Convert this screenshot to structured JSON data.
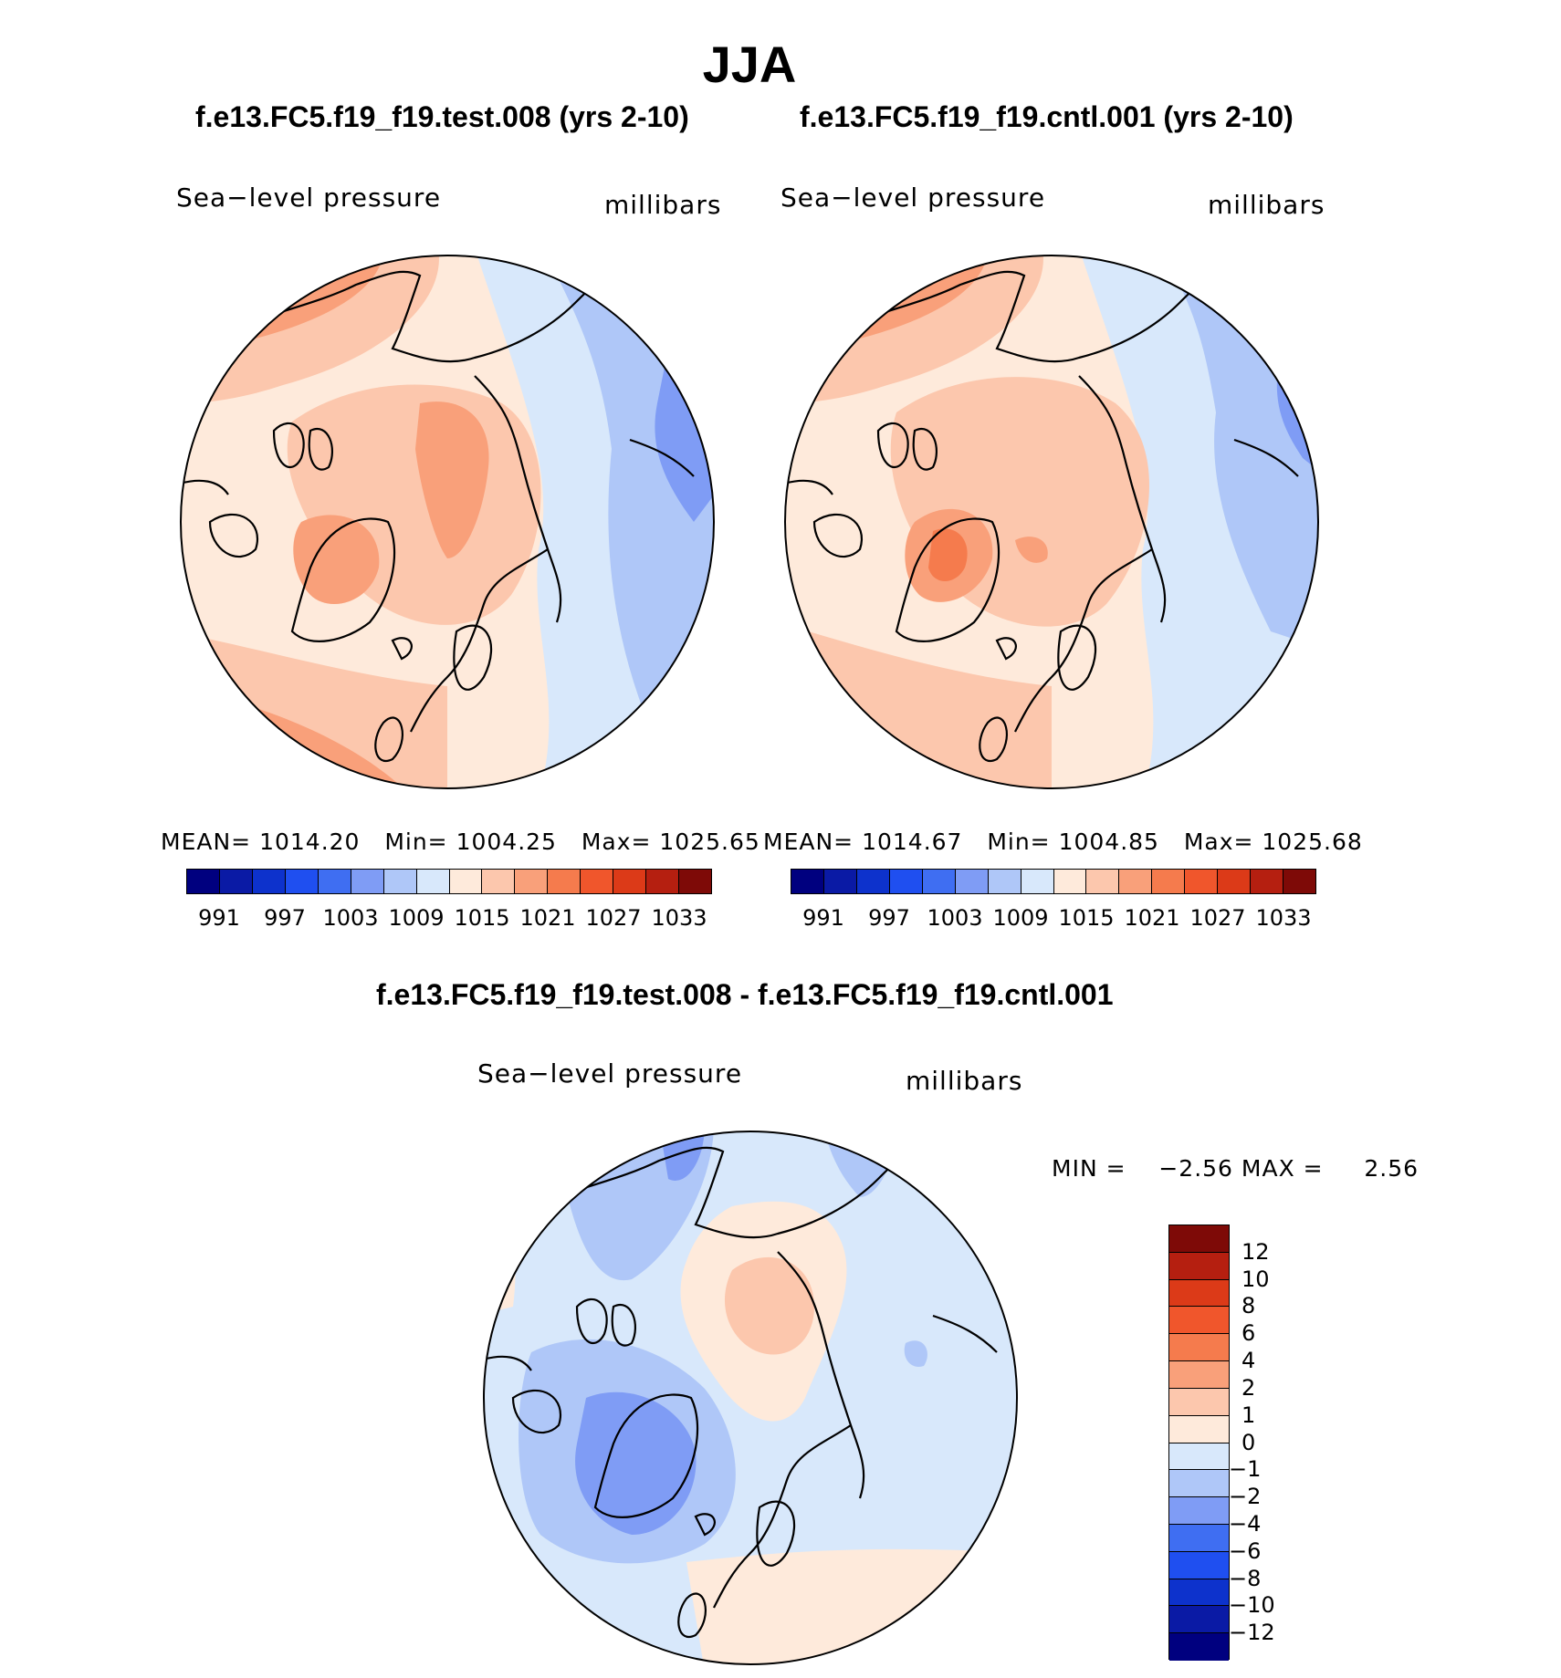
{
  "title": "JJA",
  "panels": [
    {
      "title": "f.e13.FC5.f19_f19.test.008 (yrs 2-10)",
      "variable": "Sea−level pressure",
      "units": "millibars",
      "stats": {
        "mean_label": "MEAN=",
        "mean": "1014.20",
        "min_label": "Min=",
        "min": "1004.25",
        "max_label": "Max=",
        "max": "1025.65"
      }
    },
    {
      "title": "f.e13.FC5.f19_f19.cntl.001 (yrs 2-10)",
      "variable": "Sea−level pressure",
      "units": "millibars",
      "stats": {
        "mean_label": "MEAN=",
        "mean": "1014.67",
        "min_label": "Min=",
        "min": "1004.85",
        "max_label": "Max=",
        "max": "1025.68"
      }
    }
  ],
  "colorbar_top": {
    "colors": [
      "#00007f",
      "#0a1aa5",
      "#0d32cc",
      "#1f4ff0",
      "#3f6ef2",
      "#7f9cf5",
      "#afc7f8",
      "#d8e8fb",
      "#feeadb",
      "#fcc7ad",
      "#f9a07a",
      "#f57b4d",
      "#f0562c",
      "#dc3a18",
      "#b51f10",
      "#7e0a07"
    ],
    "ticks": [
      "991",
      "997",
      "1003",
      "1009",
      "1015",
      "1021",
      "1027",
      "1033"
    ]
  },
  "difference": {
    "title": "f.e13.FC5.f19_f19.test.008 - f.e13.FC5.f19_f19.cntl.001",
    "variable": "Sea−level pressure",
    "units": "millibars",
    "stats": {
      "min_label": "MIN =",
      "min": "−2.56",
      "max_label": "MAX =",
      "max": "2.56"
    },
    "colorbar": {
      "colors": [
        "#7e0a07",
        "#b51f10",
        "#dc3a18",
        "#f0562c",
        "#f57b4d",
        "#f9a07a",
        "#fcc7ad",
        "#feeadb",
        "#d8e8fb",
        "#afc7f8",
        "#7f9cf5",
        "#3f6ef2",
        "#1f4ff0",
        "#0d32cc",
        "#0a1aa5",
        "#00007f"
      ],
      "ticks": [
        "12",
        "10",
        "8",
        "6",
        "4",
        "2",
        "1",
        "0",
        "−1",
        "−2",
        "−4",
        "−6",
        "−8",
        "−10",
        "−12"
      ]
    }
  }
}
